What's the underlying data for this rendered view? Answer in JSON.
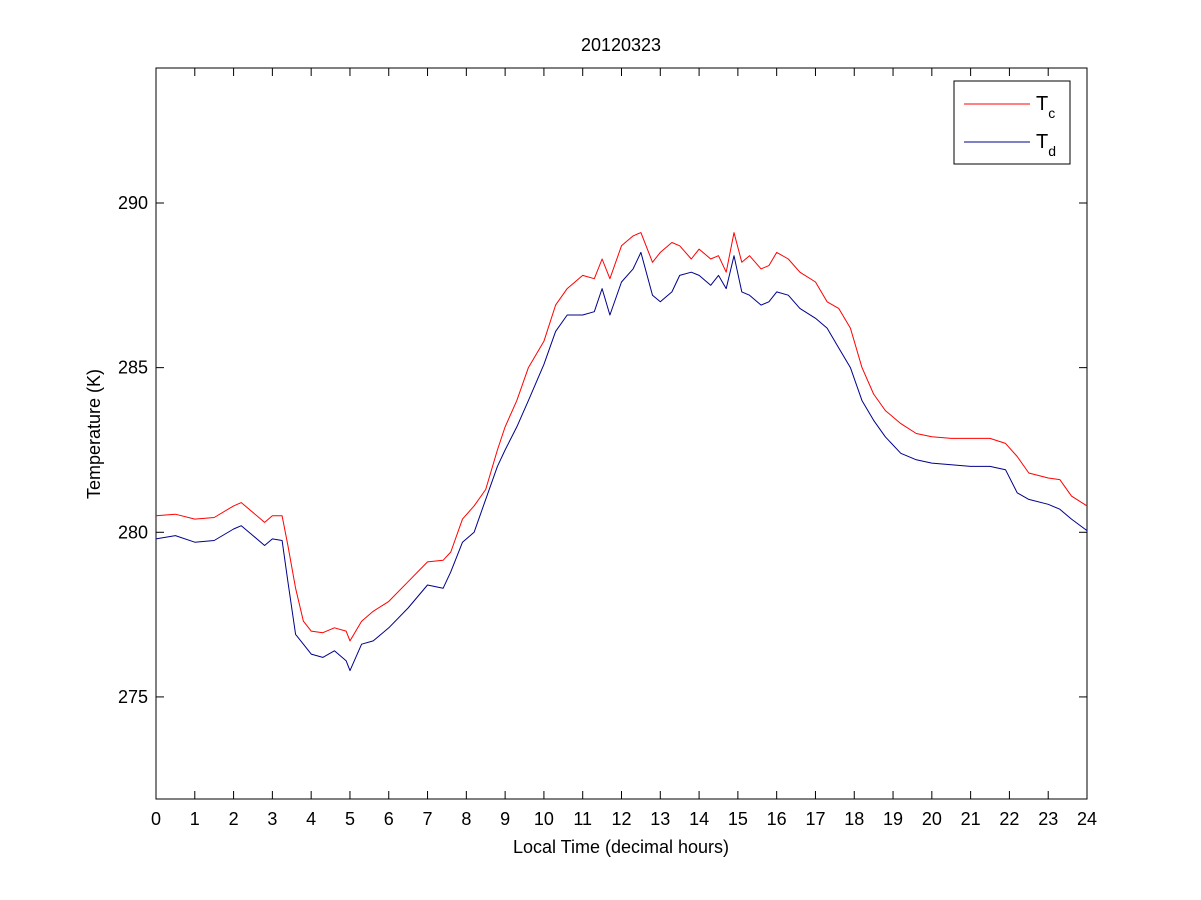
{
  "chart_data": {
    "type": "line",
    "title": "20120323",
    "xlabel": "Local Time (decimal hours)",
    "ylabel": "Temperature (K)",
    "xlim": [
      0,
      24
    ],
    "ylim": [
      271.9,
      294.1
    ],
    "xticks": [
      0,
      1,
      2,
      3,
      4,
      5,
      6,
      7,
      8,
      9,
      10,
      11,
      12,
      13,
      14,
      15,
      16,
      17,
      18,
      19,
      20,
      21,
      22,
      23,
      24
    ],
    "yticks": [
      275,
      280,
      285,
      290
    ],
    "grid": false,
    "legend_position": "top-right",
    "series": [
      {
        "name": "T_c",
        "label_main": "T",
        "label_sub": "c",
        "color": "#ff0000",
        "x": [
          0,
          0.5,
          1,
          1.5,
          2,
          2.2,
          2.5,
          2.8,
          3,
          3.25,
          3.4,
          3.6,
          3.8,
          4,
          4.3,
          4.6,
          4.9,
          5,
          5.3,
          5.6,
          6,
          6.5,
          7,
          7.4,
          7.6,
          7.9,
          8.2,
          8.5,
          8.8,
          9,
          9.3,
          9.6,
          10,
          10.3,
          10.6,
          11,
          11.3,
          11.5,
          11.7,
          12,
          12.3,
          12.5,
          12.8,
          13,
          13.3,
          13.5,
          13.8,
          14,
          14.3,
          14.5,
          14.7,
          14.9,
          15.1,
          15.3,
          15.6,
          15.8,
          16,
          16.3,
          16.6,
          17,
          17.3,
          17.6,
          17.9,
          18.2,
          18.5,
          18.8,
          19.2,
          19.6,
          20,
          20.5,
          21,
          21.5,
          21.9,
          22.2,
          22.5,
          23,
          23.3,
          23.6,
          24
        ],
        "values": [
          280.5,
          280.55,
          280.4,
          280.45,
          280.8,
          280.9,
          280.6,
          280.3,
          280.5,
          280.5,
          279.6,
          278.3,
          277.3,
          277.0,
          276.95,
          277.1,
          277.0,
          276.7,
          277.3,
          277.6,
          277.9,
          278.5,
          279.1,
          279.15,
          279.4,
          280.4,
          280.8,
          281.3,
          282.5,
          283.2,
          284.0,
          285.0,
          285.8,
          286.9,
          287.4,
          287.8,
          287.7,
          288.3,
          287.7,
          288.7,
          289.0,
          289.1,
          288.2,
          288.5,
          288.8,
          288.7,
          288.3,
          288.6,
          288.3,
          288.4,
          287.9,
          289.1,
          288.2,
          288.4,
          288.0,
          288.1,
          288.5,
          288.3,
          287.9,
          287.6,
          287.0,
          286.8,
          286.2,
          285.0,
          284.2,
          283.7,
          283.3,
          283.0,
          282.9,
          282.85,
          282.85,
          282.85,
          282.7,
          282.3,
          281.8,
          281.65,
          281.6,
          281.1,
          280.8
        ]
      },
      {
        "name": "T_d",
        "label_main": "T",
        "label_sub": "d",
        "color": "#00008b",
        "x": [
          0,
          0.5,
          1,
          1.5,
          2,
          2.2,
          2.5,
          2.8,
          3,
          3.25,
          3.4,
          3.6,
          3.8,
          4,
          4.3,
          4.6,
          4.9,
          5,
          5.3,
          5.6,
          6,
          6.5,
          7,
          7.4,
          7.6,
          7.9,
          8.2,
          8.5,
          8.8,
          9,
          9.3,
          9.6,
          10,
          10.3,
          10.6,
          11,
          11.3,
          11.5,
          11.7,
          12,
          12.3,
          12.5,
          12.8,
          13,
          13.3,
          13.5,
          13.8,
          14,
          14.3,
          14.5,
          14.7,
          14.9,
          15.1,
          15.3,
          15.6,
          15.8,
          16,
          16.3,
          16.6,
          17,
          17.3,
          17.6,
          17.9,
          18.2,
          18.5,
          18.8,
          19.2,
          19.6,
          20,
          20.5,
          21,
          21.5,
          21.9,
          22.2,
          22.5,
          23,
          23.3,
          23.6,
          24
        ],
        "values": [
          279.8,
          279.9,
          279.7,
          279.75,
          280.1,
          280.2,
          279.9,
          279.6,
          279.8,
          279.75,
          278.5,
          276.9,
          276.6,
          276.3,
          276.2,
          276.4,
          276.1,
          275.8,
          276.6,
          276.7,
          277.1,
          277.7,
          278.4,
          278.3,
          278.8,
          279.7,
          280.0,
          281.0,
          282.0,
          282.5,
          283.2,
          284.0,
          285.1,
          286.1,
          286.6,
          286.6,
          286.7,
          287.4,
          286.6,
          287.6,
          288.0,
          288.5,
          287.2,
          287.0,
          287.3,
          287.8,
          287.9,
          287.8,
          287.5,
          287.8,
          287.4,
          288.4,
          287.3,
          287.2,
          286.9,
          287.0,
          287.3,
          287.2,
          286.8,
          286.5,
          286.2,
          285.6,
          285.0,
          284.0,
          283.4,
          282.9,
          282.4,
          282.2,
          282.1,
          282.05,
          282.0,
          282.0,
          281.9,
          281.2,
          281.0,
          280.85,
          280.7,
          280.4,
          280.05
        ]
      }
    ]
  }
}
